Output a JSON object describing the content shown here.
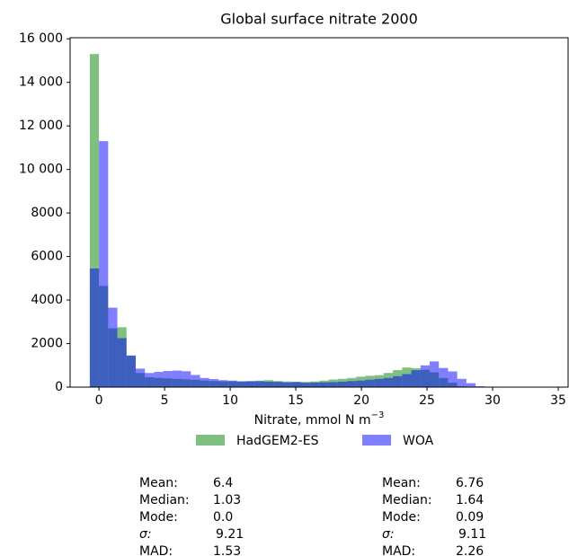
{
  "chart_data": {
    "type": "histogram",
    "title": "Global surface nitrate 2000",
    "xlabel": "Nitrate, mmol N m",
    "xlabel_superscript": "−3",
    "bins": [
      -0.7,
      0,
      0.7,
      1.4,
      2.1,
      2.8,
      3.5,
      4.2,
      4.9,
      5.6,
      6.3,
      7,
      7.7,
      8.4,
      9.1,
      9.8,
      10.5,
      11.2,
      11.9,
      12.6,
      13.3,
      14,
      14.7,
      15.4,
      16.1,
      16.8,
      17.5,
      18.2,
      18.9,
      19.6,
      20.3,
      21,
      21.7,
      22.4,
      23.1,
      23.8,
      24.5,
      25.2,
      25.9,
      26.6,
      27.3,
      28,
      28.7,
      29.4,
      30.1,
      30.8,
      31.5,
      32.2,
      32.9,
      33.6,
      34.3
    ],
    "series": [
      {
        "name": "HadGEM2-ES",
        "color": "#008000",
        "values": [
          15300,
          4650,
          2700,
          2750,
          1450,
          650,
          450,
          420,
          400,
          380,
          360,
          340,
          300,
          280,
          270,
          270,
          260,
          260,
          300,
          320,
          280,
          260,
          250,
          240,
          260,
          300,
          350,
          380,
          420,
          480,
          520,
          550,
          650,
          780,
          900,
          870,
          800,
          680,
          420,
          200,
          40,
          10,
          0,
          0,
          0,
          0,
          0,
          0,
          0,
          0
        ]
      },
      {
        "name": "WOA",
        "color": "#0000ff",
        "values": [
          5450,
          11300,
          3650,
          2250,
          1450,
          850,
          650,
          700,
          740,
          760,
          730,
          560,
          420,
          370,
          320,
          300,
          270,
          280,
          270,
          250,
          240,
          220,
          230,
          200,
          210,
          220,
          230,
          250,
          280,
          300,
          340,
          380,
          420,
          500,
          600,
          780,
          1000,
          1180,
          880,
          720,
          380,
          180,
          40,
          0,
          0,
          0,
          0,
          0,
          0,
          0
        ]
      }
    ],
    "alpha": 0.5,
    "xlim": [
      -2.2,
      35.75
    ],
    "ylim": [
      0,
      16050
    ],
    "xticks": [
      0,
      5,
      10,
      15,
      20,
      25,
      30,
      35
    ],
    "yticks": [
      0,
      2000,
      4000,
      6000,
      8000,
      {
        "value": 10000,
        "label": "10 000"
      },
      {
        "value": 12000,
        "label": "12 000"
      },
      {
        "value": 14000,
        "label": "14 000"
      },
      {
        "value": 16000,
        "label": "16 000"
      }
    ],
    "grid": false,
    "legend": "below"
  },
  "stats_panels": [
    {
      "rows": [
        [
          "Mean:",
          "6.4"
        ],
        [
          "Median:",
          "1.03"
        ],
        [
          "Mode:",
          "0.0"
        ],
        [
          "σ:",
          "9.21"
        ],
        [
          "MAD:",
          "1.53"
        ]
      ]
    },
    {
      "rows": [
        [
          "Mean:",
          "6.76"
        ],
        [
          "Median:",
          "1.64"
        ],
        [
          "Mode:",
          "0.09"
        ],
        [
          "σ:",
          "9.11"
        ],
        [
          "MAD:",
          "2.26"
        ]
      ]
    }
  ]
}
